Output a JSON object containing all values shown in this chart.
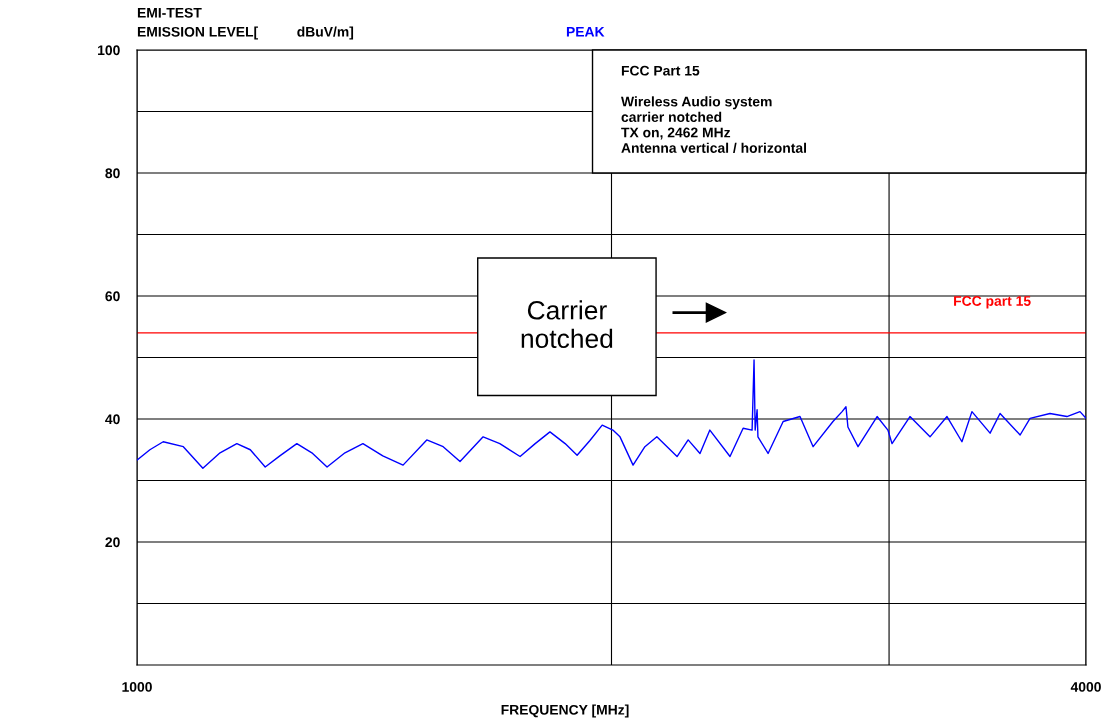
{
  "chart_data": {
    "type": "line",
    "title": "EMI-TEST",
    "ylabel": "EMISSION LEVEL[          dBuV/m]",
    "subtitle": "PEAK",
    "xlabel": "FREQUENCY [MHz]",
    "log": "x",
    "grid": true,
    "legend": false,
    "marker": "none",
    "line_style": "solid",
    "xlim": [
      1000,
      4000
    ],
    "xticks": [
      1000,
      {
        "value": 2000,
        "label": null
      },
      {
        "value": 3000,
        "label": null
      },
      4000
    ],
    "ylim": [
      0,
      100
    ],
    "yticks": [
      {
        "value": 10,
        "label": null
      },
      20,
      {
        "value": 30,
        "label": null
      },
      40,
      {
        "value": 50,
        "label": null
      },
      60,
      {
        "value": 70,
        "label": null
      },
      80,
      {
        "value": 90,
        "label": null
      },
      100
    ],
    "ref_lines": [
      {
        "axis": "y",
        "value": 54,
        "label": "FCC part 15",
        "color": "#ff0000"
      }
    ],
    "annotations": [
      "FCC Part 15\n\nWireless Audio system\ncarrier notched\nTX on, 2462 MHz\nAntenna vertical / horizontal",
      "Carrier\nnotched"
    ],
    "series": [
      {
        "color": "#0000ff",
        "x": [
          1000,
          1019,
          1039,
          1070,
          1101,
          1129,
          1157,
          1180,
          1206,
          1232,
          1263,
          1291,
          1320,
          1355,
          1391,
          1432,
          1475,
          1527,
          1564,
          1603,
          1658,
          1699,
          1750,
          1789,
          1828,
          1869,
          1902,
          1938,
          1973,
          2004,
          2025,
          2064,
          2100,
          2137,
          2201,
          2237,
          2276,
          2309,
          2378,
          2424,
          2456,
          2463,
          2467,
          2474,
          2477,
          2514,
          2570,
          2634,
          2685,
          2764,
          2801,
          2817,
          2825,
          2867,
          2948,
          2995,
          3013,
          3093,
          3185,
          3265,
          3337,
          3386,
          3477,
          3528,
          3633,
          3686,
          3795,
          3890,
          3965,
          4000
        ],
        "values": [
          33.3,
          35.0,
          36.3,
          35.5,
          32.0,
          34.5,
          36.0,
          35.0,
          32.2,
          34.0,
          36.0,
          34.5,
          32.2,
          34.5,
          36.0,
          34.0,
          32.5,
          36.6,
          35.5,
          33.1,
          37.1,
          36.0,
          33.9,
          36.0,
          37.9,
          36.0,
          34.1,
          36.5,
          39.0,
          38.2,
          37.1,
          32.5,
          35.5,
          37.1,
          33.9,
          36.6,
          34.4,
          38.2,
          33.9,
          38.5,
          38.2,
          49.6,
          38.2,
          41.5,
          37.1,
          34.4,
          39.6,
          40.4,
          35.5,
          39.6,
          41.2,
          42.0,
          38.7,
          35.5,
          40.4,
          38.2,
          36.0,
          40.4,
          37.1,
          40.4,
          36.3,
          41.2,
          37.7,
          40.9,
          37.4,
          40.1,
          40.9,
          40.4,
          41.2,
          40.1
        ]
      }
    ]
  }
}
